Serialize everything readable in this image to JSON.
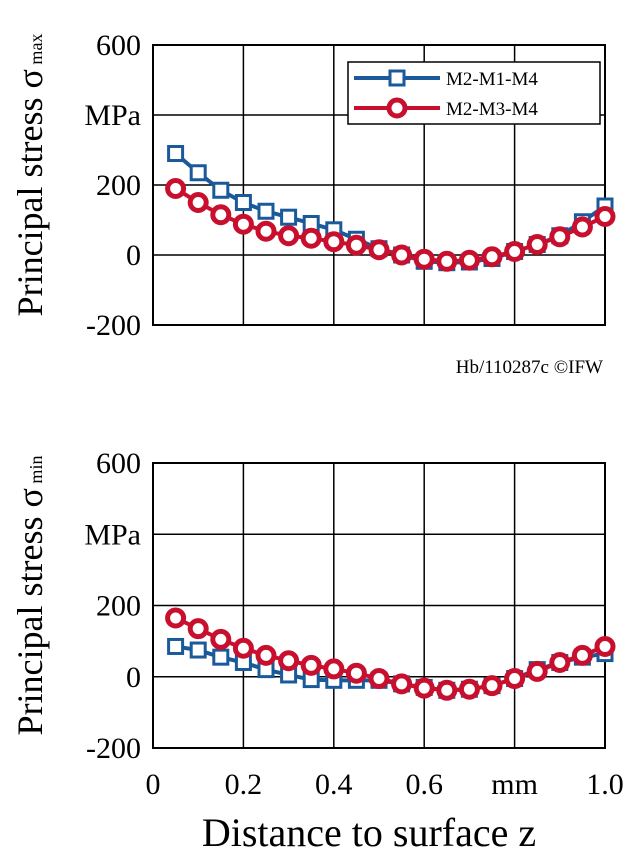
{
  "chart_data": [
    {
      "type": "line",
      "ylabel": "Principal stress σ",
      "ylabel_sub": "max",
      "y_unit": "MPa",
      "xlim": [
        0,
        1.0
      ],
      "ylim": [
        -200,
        600
      ],
      "yticks": [
        600,
        200,
        0,
        -200
      ],
      "x_grid": [
        0,
        0.2,
        0.4,
        0.6,
        0.8,
        1.0
      ],
      "y_grid": [
        -200,
        0,
        200,
        400,
        600
      ],
      "grid": true,
      "legend_position": "top-right",
      "series": [
        {
          "name": "M2-M1-M4",
          "color": "#1a5a9a",
          "marker": "square",
          "x": [
            0.05,
            0.1,
            0.15,
            0.2,
            0.25,
            0.3,
            0.35,
            0.4,
            0.45,
            0.5,
            0.55,
            0.6,
            0.65,
            0.7,
            0.75,
            0.8,
            0.85,
            0.9,
            0.95,
            1.0
          ],
          "values": [
            290,
            235,
            185,
            150,
            125,
            108,
            90,
            72,
            45,
            18,
            0,
            -18,
            -22,
            -20,
            -10,
            10,
            30,
            55,
            95,
            140
          ]
        },
        {
          "name": "M2-M3-M4",
          "color": "#c8102e",
          "marker": "circle",
          "x": [
            0.05,
            0.1,
            0.15,
            0.2,
            0.25,
            0.3,
            0.35,
            0.4,
            0.45,
            0.5,
            0.55,
            0.6,
            0.65,
            0.7,
            0.75,
            0.8,
            0.85,
            0.9,
            0.95,
            1.0
          ],
          "values": [
            190,
            150,
            115,
            88,
            68,
            55,
            48,
            38,
            28,
            15,
            0,
            -12,
            -18,
            -15,
            -5,
            10,
            30,
            52,
            80,
            110
          ]
        }
      ]
    },
    {
      "type": "line",
      "ylabel": "Principal stress σ",
      "ylabel_sub": "min",
      "y_unit": "MPa",
      "xlabel": "Distance to surface z",
      "x_unit": "mm",
      "xlim": [
        0,
        1.0
      ],
      "ylim": [
        -200,
        600
      ],
      "yticks": [
        600,
        200,
        0,
        -200
      ],
      "xticks": [
        "0",
        "0.2",
        "0.4",
        "0.6",
        "1.0"
      ],
      "x_grid": [
        0,
        0.2,
        0.4,
        0.6,
        0.8,
        1.0
      ],
      "y_grid": [
        -200,
        0,
        200,
        400,
        600
      ],
      "grid": true,
      "series": [
        {
          "name": "M2-M1-M4",
          "color": "#1a5a9a",
          "marker": "square",
          "x": [
            0.05,
            0.1,
            0.15,
            0.2,
            0.25,
            0.3,
            0.35,
            0.4,
            0.45,
            0.5,
            0.55,
            0.6,
            0.65,
            0.7,
            0.75,
            0.8,
            0.85,
            0.9,
            0.95,
            1.0
          ],
          "values": [
            85,
            75,
            55,
            40,
            20,
            5,
            -8,
            -10,
            -10,
            -10,
            -20,
            -30,
            -38,
            -35,
            -25,
            -5,
            20,
            40,
            55,
            65
          ]
        },
        {
          "name": "M2-M3-M4",
          "color": "#c8102e",
          "marker": "circle",
          "x": [
            0.05,
            0.1,
            0.15,
            0.2,
            0.25,
            0.3,
            0.35,
            0.4,
            0.45,
            0.5,
            0.55,
            0.6,
            0.65,
            0.7,
            0.75,
            0.8,
            0.85,
            0.9,
            0.95,
            1.0
          ],
          "values": [
            165,
            135,
            105,
            80,
            60,
            45,
            32,
            22,
            10,
            -5,
            -20,
            -32,
            -38,
            -35,
            -25,
            -5,
            15,
            40,
            60,
            85
          ]
        }
      ]
    }
  ],
  "credit": "Hb/110287c ©IFW"
}
